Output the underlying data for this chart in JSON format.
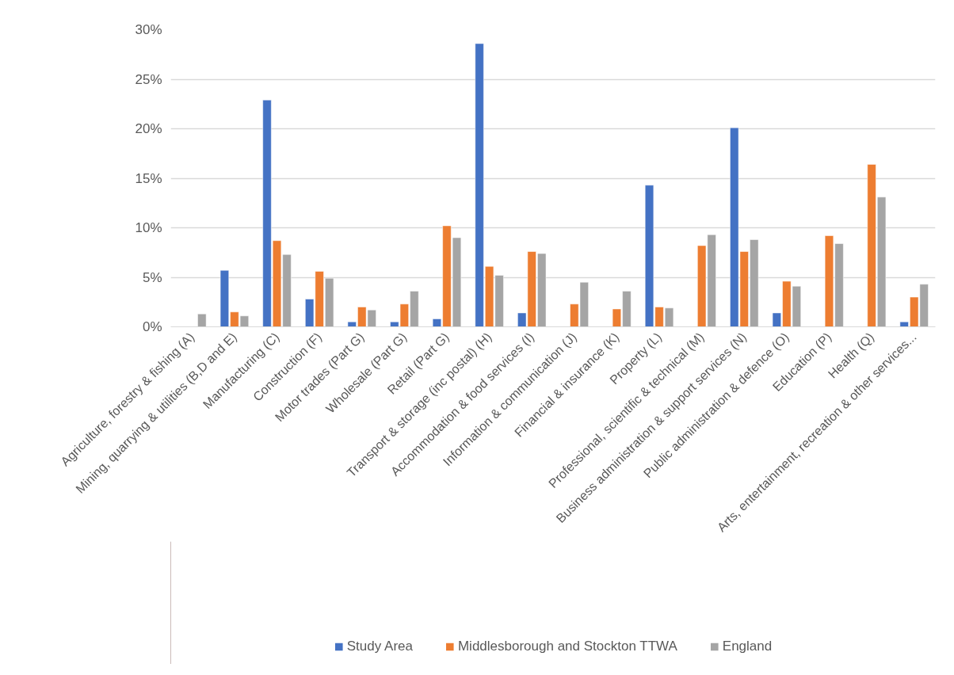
{
  "chart_data": {
    "type": "bar",
    "categories": [
      "Agriculture, forestry & fishing (A)",
      "Mining, quarrying & utilities (B,D and E)",
      "Manufacturing (C)",
      "Construction (F)",
      "Motor trades (Part G)",
      "Wholesale (Part G)",
      "Retail (Part G)",
      "Transport & storage (inc postal) (H)",
      "Accommodation & food services (I)",
      "Information & communication (J)",
      "Financial & insurance (K)",
      "Property (L)",
      "Professional, scientific & technical (M)",
      "Business administration & support services (N)",
      "Public administration & defence (O)",
      "Education (P)",
      "Health (Q)",
      "Arts, entertainment, recreation & other services..."
    ],
    "series": [
      {
        "name": "Study Area",
        "color": "#4472c4",
        "values": [
          null,
          5.7,
          22.9,
          2.8,
          0.5,
          0.5,
          0.8,
          28.6,
          1.4,
          null,
          null,
          14.3,
          null,
          20.1,
          1.4,
          null,
          null,
          0.5
        ]
      },
      {
        "name": "Middlesborough and Stockton TTWA",
        "color": "#ed7d31",
        "values": [
          null,
          1.5,
          8.7,
          5.6,
          2.0,
          2.3,
          10.2,
          6.1,
          7.6,
          2.3,
          1.8,
          2.0,
          8.2,
          7.6,
          4.6,
          9.2,
          16.4,
          3.0
        ]
      },
      {
        "name": "England",
        "color": "#a5a5a5",
        "values": [
          1.3,
          1.1,
          7.3,
          4.9,
          1.7,
          3.6,
          9.0,
          5.2,
          7.4,
          4.5,
          3.6,
          1.9,
          9.3,
          8.8,
          4.1,
          8.4,
          13.1,
          4.3
        ]
      }
    ],
    "ylim": [
      0,
      30
    ],
    "yticks": [
      {
        "value": 0,
        "label": "0%"
      },
      {
        "value": 5,
        "label": "5%"
      },
      {
        "value": 10,
        "label": "10%"
      },
      {
        "value": 15,
        "label": "15%"
      },
      {
        "value": 20,
        "label": "20%"
      },
      {
        "value": 25,
        "label": "25%"
      },
      {
        "value": 30,
        "label": "30%"
      }
    ],
    "grid": "y",
    "legend": "bottom"
  }
}
